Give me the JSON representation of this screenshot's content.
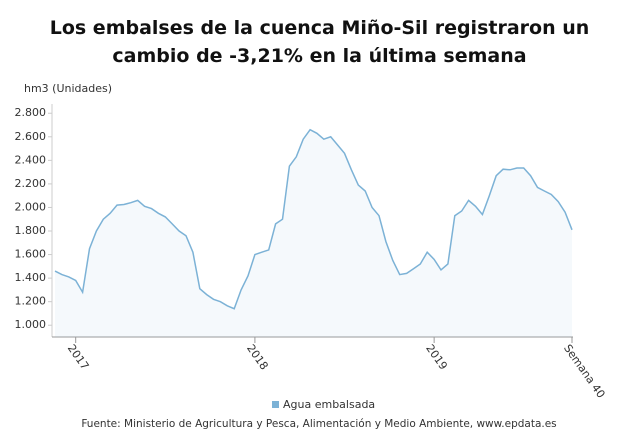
{
  "chart_data": {
    "type": "line",
    "title": "Los embalses de la cuenca Miño-Sil registraron un cambio de -3,21% en la última semana",
    "y_label": "hm3 (Unidades)",
    "source": "Fuente: Ministerio de Agricultura y Pesca, Alimentación y Medio Ambiente, www.epdata.es",
    "categories": [
      null,
      null,
      null,
      "2017",
      null,
      null,
      null,
      null,
      null,
      null,
      null,
      null,
      null,
      null,
      null,
      null,
      null,
      null,
      null,
      null,
      null,
      null,
      null,
      null,
      null,
      null,
      null,
      null,
      null,
      "2018",
      null,
      null,
      null,
      null,
      null,
      null,
      null,
      null,
      null,
      null,
      null,
      null,
      null,
      null,
      null,
      null,
      null,
      null,
      null,
      null,
      null,
      null,
      null,
      null,
      null,
      "2019",
      null,
      null,
      null,
      null,
      null,
      null,
      null,
      null,
      null,
      null,
      null,
      null,
      null,
      null,
      null,
      null,
      null,
      null,
      null,
      "Semana 40"
    ],
    "series": [
      {
        "name": "Agua embalsada",
        "color": "#7cb2d6",
        "values": [
          1460,
          1430,
          1410,
          1380,
          1280,
          1650,
          1800,
          1900,
          1950,
          2020,
          2025,
          2040,
          2060,
          2010,
          1990,
          1950,
          1920,
          1860,
          1800,
          1760,
          1620,
          1310,
          1260,
          1220,
          1200,
          1165,
          1140,
          1300,
          1420,
          1600,
          1620,
          1640,
          1860,
          1900,
          2350,
          2430,
          2580,
          2660,
          2630,
          2580,
          2600,
          2530,
          2460,
          2320,
          2190,
          2140,
          2000,
          1930,
          1710,
          1550,
          1430,
          1440,
          1480,
          1520,
          1620,
          1560,
          1470,
          1520,
          1930,
          1970,
          2060,
          2010,
          1940,
          2100,
          2270,
          2325,
          2320,
          2335,
          2335,
          2270,
          2170,
          2140,
          2110,
          2050,
          1960,
          1810
        ]
      }
    ],
    "ylim": [
      900,
      2870
    ],
    "yticks": [
      {
        "value": 1000,
        "label": "1.000"
      },
      {
        "value": 1200,
        "label": "1.200"
      },
      {
        "value": 1400,
        "label": "1.400"
      },
      {
        "value": 1600,
        "label": "1.600"
      },
      {
        "value": 1800,
        "label": "1.800"
      },
      {
        "value": 2000,
        "label": "2.000"
      },
      {
        "value": 2200,
        "label": "2.200"
      },
      {
        "value": 2400,
        "label": "2.400"
      },
      {
        "value": 2600,
        "label": "2.600"
      },
      {
        "value": 2800,
        "label": "2.800"
      }
    ],
    "grid": false,
    "legend": "bottom"
  }
}
